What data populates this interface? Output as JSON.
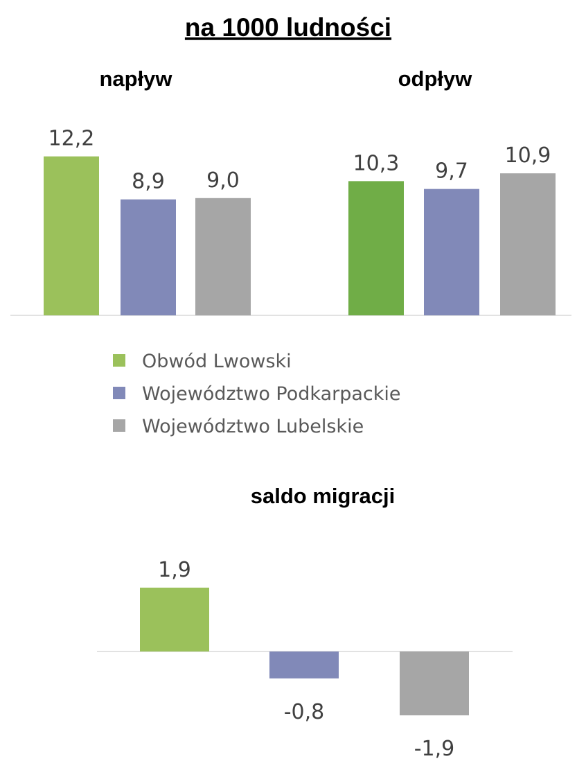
{
  "title": "na 1000 ludności",
  "legend": [
    {
      "name": "Obwód Lwowski",
      "color": "#9bc15b"
    },
    {
      "name": "Województwo Podkarpackie",
      "color": "#8189b8"
    },
    {
      "name": "Województwo Lubelskie",
      "color": "#a6a6a6"
    }
  ],
  "chart_data": [
    {
      "type": "bar",
      "title": "napływ",
      "values": [
        12.2,
        8.9,
        9.0
      ],
      "value_labels": [
        "12,2",
        "8,9",
        "9,0"
      ],
      "colors": [
        "#9bc15b",
        "#8189b8",
        "#a6a6a6"
      ]
    },
    {
      "type": "bar",
      "title": "odpływ",
      "values": [
        10.3,
        9.7,
        10.9
      ],
      "value_labels": [
        "10,3",
        "9,7",
        "10,9"
      ],
      "colors": [
        "#70ad47",
        "#8189b8",
        "#a6a6a6"
      ]
    },
    {
      "type": "bar",
      "title": "saldo migracji",
      "values": [
        1.9,
        -0.8,
        -1.9
      ],
      "value_labels": [
        "1,9",
        "-0,8",
        "-1,9"
      ],
      "colors": [
        "#9bc15b",
        "#8189b8",
        "#a6a6a6"
      ]
    }
  ]
}
